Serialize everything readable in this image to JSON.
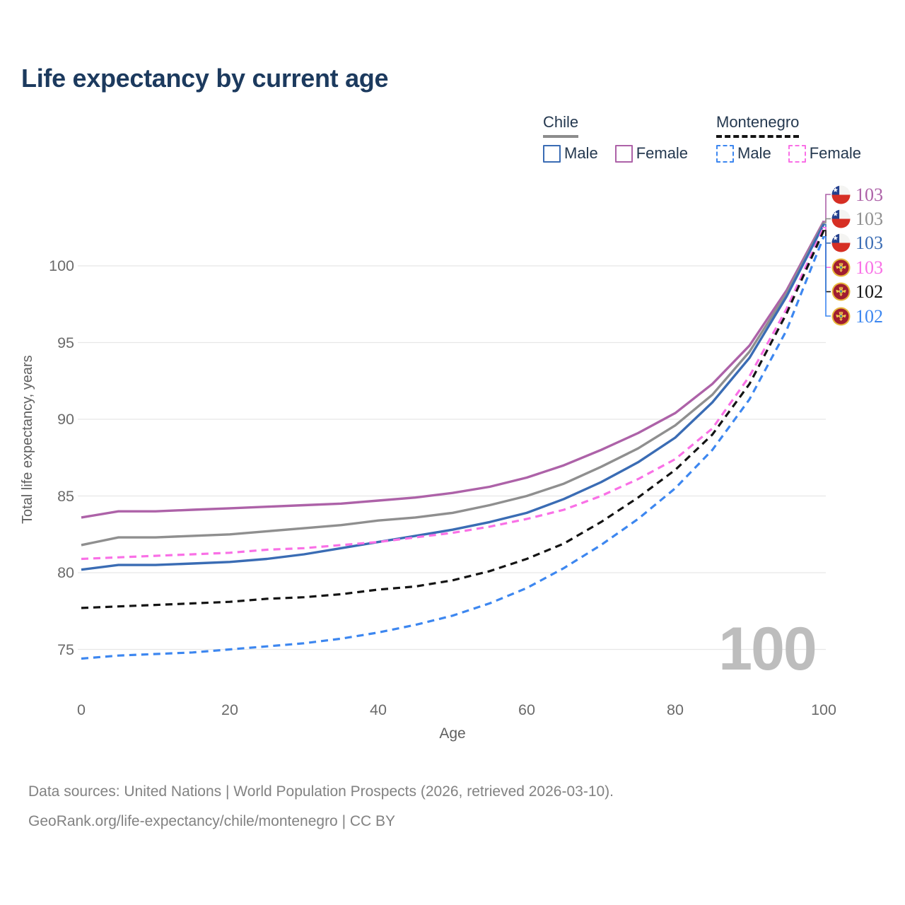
{
  "title": "Life expectancy by current age",
  "legend": {
    "groups": [
      {
        "label": "Chile",
        "line_style": "solid",
        "underline_color": "#8c8c8c",
        "items": [
          {
            "label": "Male",
            "color": "#3a6cb4",
            "dashed": false
          },
          {
            "label": "Female",
            "color": "#ad62a8",
            "dashed": false
          }
        ]
      },
      {
        "label": "Montenegro",
        "line_style": "dashed",
        "underline_color": "#141414",
        "items": [
          {
            "label": "Male",
            "color": "#3d87f0",
            "dashed": true
          },
          {
            "label": "Female",
            "color": "#f970e6",
            "dashed": true
          }
        ]
      }
    ]
  },
  "chart_data": {
    "type": "line",
    "title": "Life expectancy by current age",
    "xlabel": "Age",
    "ylabel": "Total life expectancy, years",
    "watermark": "100",
    "x": [
      0,
      5,
      10,
      15,
      20,
      25,
      30,
      35,
      40,
      45,
      50,
      55,
      60,
      65,
      70,
      75,
      80,
      85,
      90,
      95,
      100
    ],
    "xticks": [
      0,
      20,
      40,
      60,
      80,
      100
    ],
    "yticks": [
      75,
      80,
      85,
      90,
      95,
      100
    ],
    "xlim": [
      0,
      100
    ],
    "ylim": [
      73.5,
      104
    ],
    "grid": "horizontal",
    "legend_position": "top-right",
    "series": [
      {
        "name": "Chile Female",
        "country": "Chile",
        "sex": "Female",
        "flag": "chile",
        "color": "#ad62a8",
        "line": "solid",
        "end_label": "103",
        "values": [
          83.6,
          84.0,
          84.0,
          84.1,
          84.2,
          84.3,
          84.4,
          84.5,
          84.7,
          84.9,
          85.2,
          85.6,
          86.2,
          87.0,
          88.0,
          89.1,
          90.4,
          92.3,
          94.8,
          98.4,
          102.9
        ]
      },
      {
        "name": "Chile",
        "country": "Chile",
        "sex": "All",
        "flag": "chile",
        "color": "#8f8f8f",
        "line": "solid",
        "end_label": "103",
        "values": [
          81.8,
          82.3,
          82.3,
          82.4,
          82.5,
          82.7,
          82.9,
          83.1,
          83.4,
          83.6,
          83.9,
          84.4,
          85.0,
          85.8,
          86.9,
          88.1,
          89.6,
          91.6,
          94.4,
          98.2,
          102.8
        ]
      },
      {
        "name": "Chile Male",
        "country": "Chile",
        "sex": "Male",
        "flag": "chile",
        "color": "#3a6cb4",
        "line": "solid",
        "end_label": "103",
        "values": [
          80.2,
          80.5,
          80.5,
          80.6,
          80.7,
          80.9,
          81.2,
          81.6,
          82.0,
          82.4,
          82.8,
          83.3,
          83.9,
          84.8,
          85.9,
          87.2,
          88.8,
          91.1,
          94.0,
          98.0,
          102.7
        ]
      },
      {
        "name": "Montenegro Female",
        "country": "Montenegro",
        "sex": "Female",
        "flag": "montenegro",
        "color": "#f970e6",
        "line": "dashed",
        "end_label": "103",
        "values": [
          80.9,
          81.0,
          81.1,
          81.2,
          81.3,
          81.5,
          81.6,
          81.8,
          82.0,
          82.3,
          82.6,
          83.0,
          83.5,
          84.1,
          85.0,
          86.1,
          87.4,
          89.4,
          92.8,
          97.2,
          102.5
        ]
      },
      {
        "name": "Montenegro",
        "country": "Montenegro",
        "sex": "All",
        "flag": "montenegro",
        "color": "#141414",
        "line": "dashed",
        "end_label": "102",
        "values": [
          77.7,
          77.8,
          77.9,
          78.0,
          78.1,
          78.3,
          78.4,
          78.6,
          78.9,
          79.1,
          79.5,
          80.1,
          80.9,
          81.9,
          83.3,
          84.9,
          86.7,
          89.0,
          92.3,
          96.9,
          102.3
        ]
      },
      {
        "name": "Montenegro Male",
        "country": "Montenegro",
        "sex": "Male",
        "flag": "montenegro",
        "color": "#3d87f0",
        "line": "dashed",
        "end_label": "102",
        "values": [
          74.4,
          74.6,
          74.7,
          74.8,
          75.0,
          75.2,
          75.4,
          75.7,
          76.1,
          76.6,
          77.2,
          78.0,
          79.0,
          80.3,
          81.8,
          83.5,
          85.5,
          88.0,
          91.3,
          95.8,
          101.9
        ]
      }
    ]
  },
  "footer": {
    "line1": "Data sources: United Nations | World Population Prospects (2026, retrieved 2026-03-10).",
    "line2": "GeoRank.org/life-expectancy/chile/montenegro | CC BY"
  }
}
